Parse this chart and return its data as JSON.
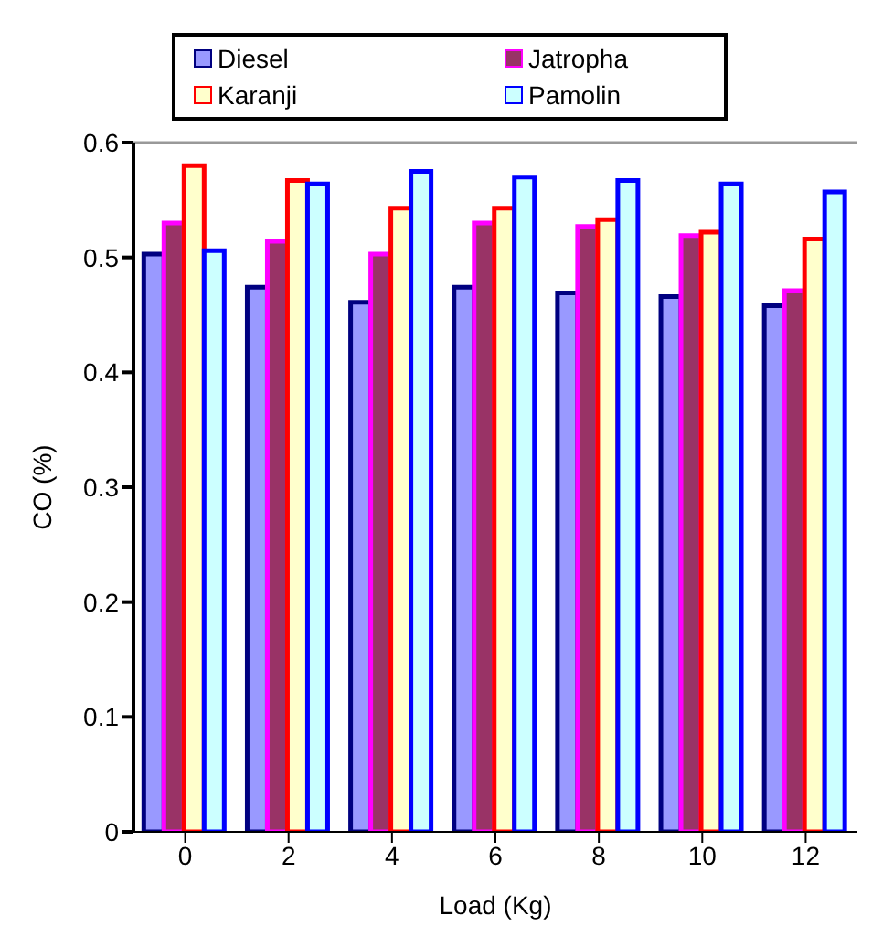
{
  "chart_data": {
    "type": "bar",
    "xlabel": "Load (Kg)",
    "ylabel": "CO (%)",
    "categories": [
      "0",
      "2",
      "4",
      "6",
      "8",
      "10",
      "12"
    ],
    "series": [
      {
        "name": "Diesel",
        "color": "#9999ff",
        "values": [
          0.503,
          0.474,
          0.461,
          0.474,
          0.469,
          0.466,
          0.458
        ]
      },
      {
        "name": "Jatropha",
        "color": "#993366",
        "values": [
          0.53,
          0.514,
          0.503,
          0.53,
          0.527,
          0.519,
          0.471
        ]
      },
      {
        "name": "Karanji",
        "color": "#ffffcc",
        "values": [
          0.58,
          0.567,
          0.543,
          0.543,
          0.533,
          0.522,
          0.516
        ]
      },
      {
        "name": "Pamolin",
        "color": "#ccffff",
        "values": [
          0.506,
          0.564,
          0.575,
          0.57,
          0.567,
          0.564,
          0.557
        ]
      }
    ],
    "ylim": [
      0,
      0.6
    ],
    "yticks": [
      0,
      0.1,
      0.2,
      0.3,
      0.4,
      0.5,
      0.6
    ],
    "grid": false,
    "legend": "top"
  }
}
